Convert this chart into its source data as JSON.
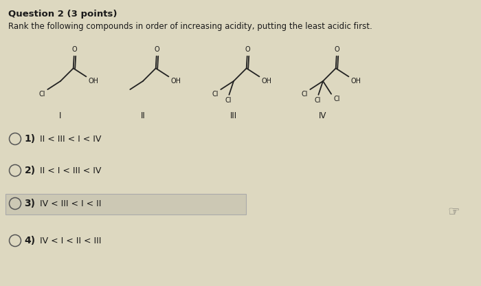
{
  "title": "Question 2 (3 points)",
  "subtitle": "Rank the following compounds in order of increasing acidity, putting the least acidic first.",
  "bg_color": "#ddd8c0",
  "text_color": "#1a1a1a",
  "options_number": [
    "1)",
    "2)",
    "3)",
    "4)"
  ],
  "options_text": [
    " II < III < I < IV",
    " II < I < III < IV",
    " IV < III < I < II",
    " IV < I < II < III"
  ],
  "option3_highlight": true,
  "figsize": [
    7.0,
    4.16
  ],
  "dpi": 100
}
